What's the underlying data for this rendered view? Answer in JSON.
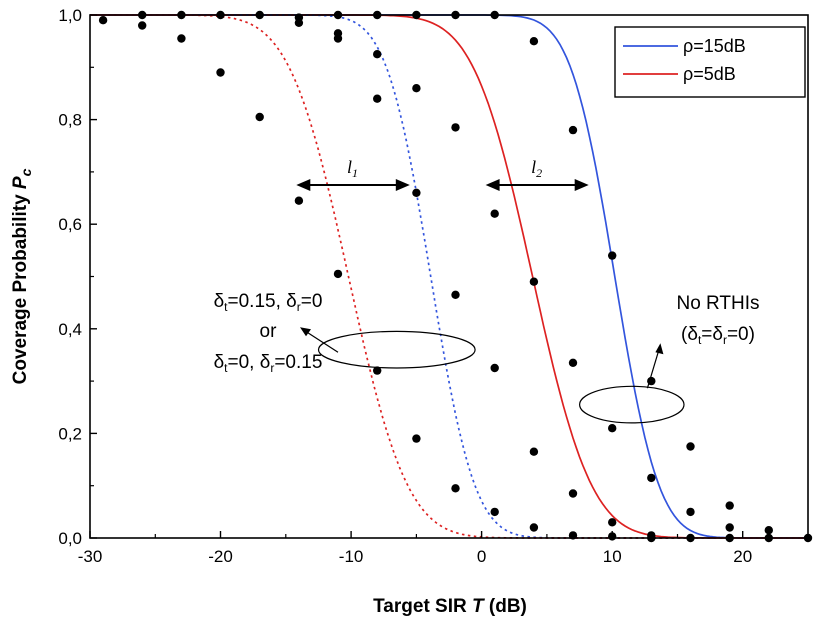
{
  "chart_data": {
    "type": "line",
    "xlabel": "Target SIR",
    "xlabel_var": "T",
    "xlabel_unit": "(dB)",
    "ylabel": "Coverage Probability",
    "ylabel_var": "P",
    "ylabel_sub": "c",
    "xlim": [
      -30,
      25
    ],
    "ylim": [
      0,
      1.0
    ],
    "xticks": [
      -30,
      -20,
      -10,
      0,
      10,
      20
    ],
    "xtick_labels": [
      "-30",
      "-20",
      "-10",
      "0",
      "10",
      "20"
    ],
    "yticks": [
      0,
      0.2,
      0.4,
      0.6,
      0.8,
      1.0
    ],
    "ytick_labels": [
      "0,0",
      "0,2",
      "0,4",
      "0,6",
      "0,8",
      "1,0"
    ],
    "legend_position": "top-right",
    "legend": [
      {
        "label": "ρ=15dB",
        "color": "#3355dd"
      },
      {
        "label": "ρ=5dB",
        "color": "#dd2222"
      }
    ],
    "series": [
      {
        "name": "ρ=15dB",
        "impairment": "No RTHIs",
        "style": "solid",
        "color": "#3355dd",
        "mu": 10.2,
        "s": 2.65
      },
      {
        "name": "ρ=5dB",
        "impairment": "No RTHIs",
        "style": "solid",
        "color": "#dd2222",
        "mu": 3.9,
        "s": 3.55
      },
      {
        "name": "ρ=15dB",
        "impairment": "RTHIs",
        "style": "dotted",
        "color": "#3355dd",
        "mu": -3.9,
        "s": 2.65
      },
      {
        "name": "ρ=5dB",
        "impairment": "RTHIs",
        "style": "dotted",
        "color": "#dd2222",
        "mu": -10.2,
        "s": 3.55
      }
    ],
    "points": [
      {
        "x": -29,
        "y": 0.99
      },
      {
        "x": -26,
        "y": 0.98
      },
      {
        "x": -23,
        "y": 0.955
      },
      {
        "x": -20,
        "y": 0.89
      },
      {
        "x": -17,
        "y": 0.805
      },
      {
        "x": -14,
        "y": 0.645
      },
      {
        "x": -11,
        "y": 0.505
      },
      {
        "x": -8,
        "y": 0.32
      },
      {
        "x": -5,
        "y": 0.19
      },
      {
        "x": -2,
        "y": 0.095
      },
      {
        "x": 1,
        "y": 0.05
      },
      {
        "x": 4,
        "y": 0.02
      },
      {
        "x": 7,
        "y": 0.005
      },
      {
        "x": 10,
        "y": 0.003
      },
      {
        "x": 13,
        "y": 0.0
      },
      {
        "x": -26,
        "y": 1.0
      },
      {
        "x": -23,
        "y": 1.0
      },
      {
        "x": -20,
        "y": 1.0
      },
      {
        "x": -17,
        "y": 1.0
      },
      {
        "x": -14,
        "y": 0.995
      },
      {
        "x": -11,
        "y": 0.965
      },
      {
        "x": -8,
        "y": 0.84
      },
      {
        "x": -5,
        "y": 0.66
      },
      {
        "x": -2,
        "y": 0.465
      },
      {
        "x": 1,
        "y": 0.325
      },
      {
        "x": 4,
        "y": 0.165
      },
      {
        "x": 7,
        "y": 0.085
      },
      {
        "x": 10,
        "y": 0.03
      },
      {
        "x": 13,
        "y": 0.005
      },
      {
        "x": 16,
        "y": 0.0
      },
      {
        "x": 19,
        "y": 0.0
      },
      {
        "x": -14,
        "y": 0.985
      },
      {
        "x": -11,
        "y": 0.955
      },
      {
        "x": -8,
        "y": 0.925
      },
      {
        "x": -5,
        "y": 0.86
      },
      {
        "x": -2,
        "y": 0.785
      },
      {
        "x": 1,
        "y": 0.62
      },
      {
        "x": 4,
        "y": 0.49
      },
      {
        "x": 7,
        "y": 0.335
      },
      {
        "x": 10,
        "y": 0.21
      },
      {
        "x": 13,
        "y": 0.115
      },
      {
        "x": 16,
        "y": 0.05
      },
      {
        "x": 19,
        "y": 0.02
      },
      {
        "x": 22,
        "y": 0.0
      },
      {
        "x": 25,
        "y": 0.0
      },
      {
        "x": -11,
        "y": 1.0
      },
      {
        "x": -8,
        "y": 1.0
      },
      {
        "x": -5,
        "y": 1.0
      },
      {
        "x": -2,
        "y": 1.0
      },
      {
        "x": 1,
        "y": 1.0
      },
      {
        "x": 4,
        "y": 0.95
      },
      {
        "x": 7,
        "y": 0.78
      },
      {
        "x": 10,
        "y": 0.54
      },
      {
        "x": 13,
        "y": 0.3
      },
      {
        "x": 16,
        "y": 0.175
      },
      {
        "x": 19,
        "y": 0.062
      },
      {
        "x": 22,
        "y": 0.015
      }
    ],
    "arrows": [
      {
        "label": "l",
        "label_sub": "1",
        "x1": -14.2,
        "x2": -5.5,
        "y": 0.675
      },
      {
        "label": "l",
        "label_sub": "2",
        "x1": 0.3,
        "x2": 8.2,
        "y": 0.675
      }
    ],
    "ellipses": [
      {
        "cx": -6.5,
        "cy": 0.36,
        "rx": 6.0,
        "ry": 0.035
      },
      {
        "cx": 11.5,
        "cy": 0.255,
        "rx": 4.0,
        "ry": 0.035
      }
    ],
    "annotations": {
      "rthi_line1": "δ|t|=0.15, δ|r|=0",
      "rthi_line2": "or",
      "rthi_line3": "δ|t|=0, δ|r|=0.15",
      "no_rthi_line1": "No RTHIs",
      "no_rthi_line2": "(δ|t|=δ|r|=0)"
    }
  }
}
